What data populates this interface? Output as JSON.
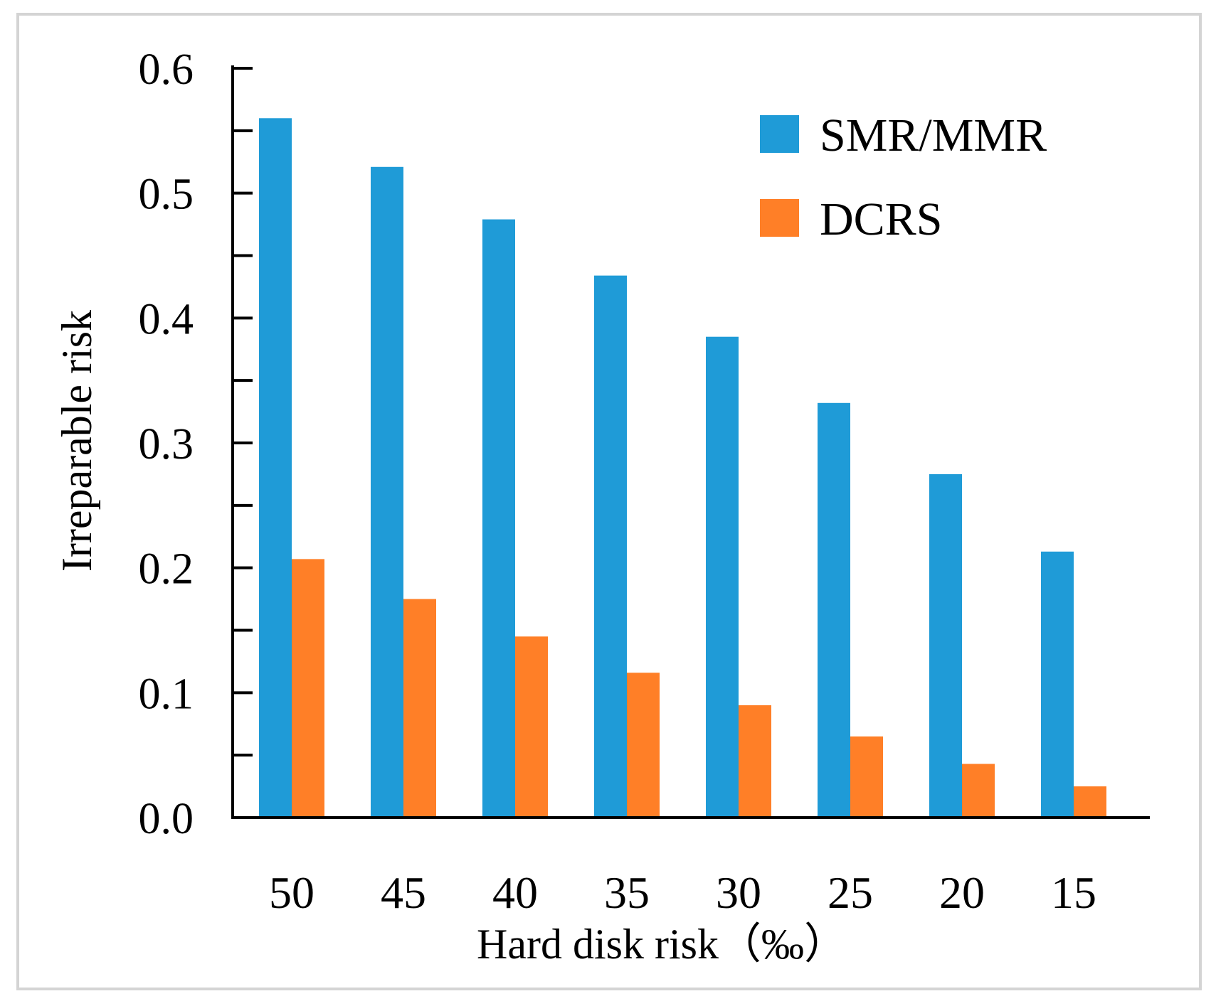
{
  "chart_data": {
    "type": "bar",
    "title": "",
    "xlabel": "Hard disk risk（‰）",
    "ylabel": "Irreparable risk",
    "categories": [
      "50",
      "45",
      "40",
      "35",
      "30",
      "25",
      "20",
      "15"
    ],
    "series": [
      {
        "name": "SMR/MMR",
        "color": "#1f9bd7",
        "values": [
          0.56,
          0.521,
          0.479,
          0.434,
          0.385,
          0.332,
          0.275,
          0.213
        ]
      },
      {
        "name": "DCRS",
        "color": "#ff7f27",
        "values": [
          0.207,
          0.175,
          0.145,
          0.116,
          0.09,
          0.065,
          0.043,
          0.025
        ]
      }
    ],
    "ylim": [
      0,
      0.6
    ],
    "yticks": [
      "0.0",
      "0.1",
      "0.2",
      "0.3",
      "0.4",
      "0.5",
      "0.6"
    ],
    "grid": false,
    "legend_position": "top-right"
  }
}
